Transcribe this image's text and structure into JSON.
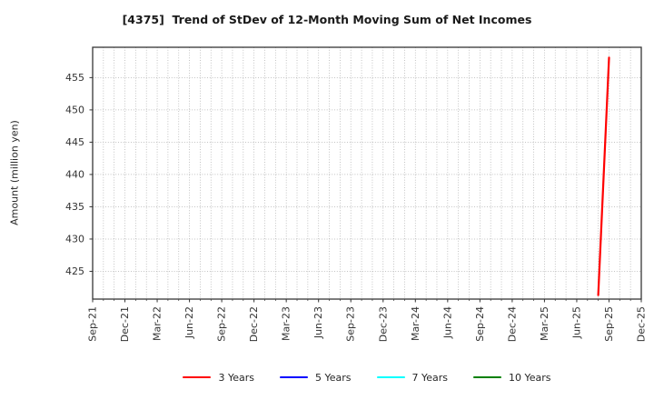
{
  "chart_data": {
    "type": "line",
    "title": "[4375]  Trend of StDev of 12-Month Moving Sum of Net Incomes",
    "xlabel": "",
    "ylabel": "Amount (million yen)",
    "x_tick_labels": [
      "Sep-21",
      "Dec-21",
      "Mar-22",
      "Jun-22",
      "Sep-22",
      "Dec-22",
      "Mar-23",
      "Jun-23",
      "Sep-23",
      "Dec-23",
      "Mar-24",
      "Jun-24",
      "Sep-24",
      "Dec-24",
      "Mar-25",
      "Jun-25",
      "Sep-25",
      "Dec-25"
    ],
    "x_range_months": [
      "Sep-21",
      "Dec-25"
    ],
    "x_minor_unit": "month",
    "y_ticks": [
      425,
      430,
      435,
      440,
      445,
      450,
      455
    ],
    "ylim": [
      420.7,
      459.7
    ],
    "grid": {
      "style": "dotted",
      "color": "#b0b0b0",
      "vertical": "every-month",
      "horizontal": "every-major-tick"
    },
    "legend_position": "bottom-center",
    "series": [
      {
        "name": "3 Years",
        "color": "#ff0000",
        "points": [
          {
            "x": "Aug-25",
            "y": 421.3
          },
          {
            "x": "Sep-25",
            "y": 458.1
          }
        ]
      },
      {
        "name": "5 Years",
        "color": "#0000ff",
        "points": []
      },
      {
        "name": "7 Years",
        "color": "#00ffff",
        "points": []
      },
      {
        "name": "10 Years",
        "color": "#008000",
        "points": []
      }
    ]
  },
  "colors": {
    "background": "#ffffff",
    "text": "#1a1a1a",
    "tick_text": "#333333",
    "axis_frame": "#363636",
    "grid": "#b0b0b0"
  }
}
